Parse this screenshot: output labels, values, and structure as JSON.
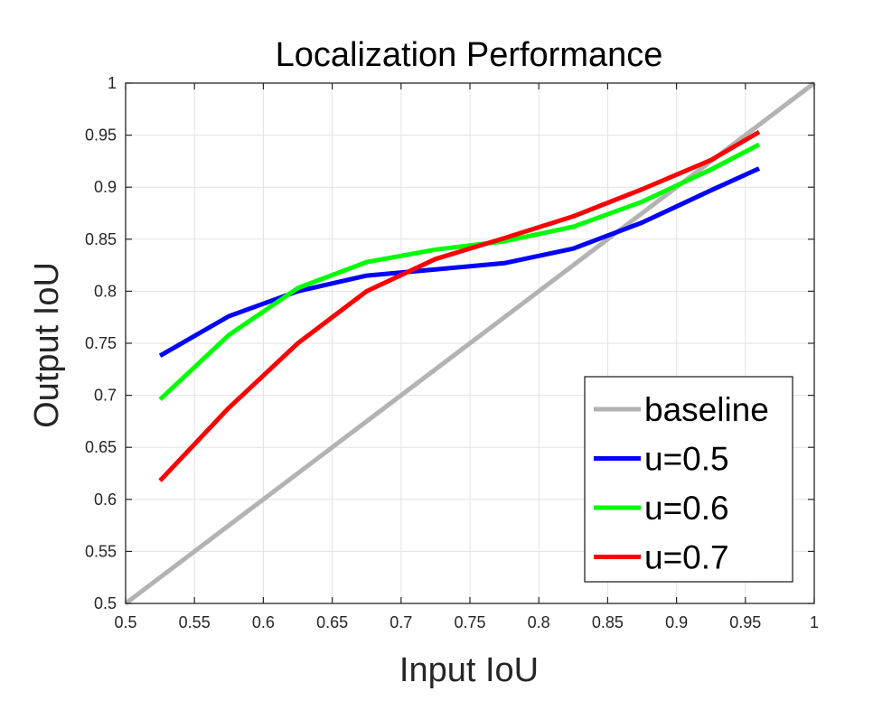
{
  "chart_data": {
    "type": "line",
    "title": "Localization Performance",
    "xlabel": "Input IoU",
    "ylabel": "Output IoU",
    "xlim": [
      0.5,
      1
    ],
    "ylim": [
      0.5,
      1
    ],
    "xticks": [
      0.5,
      0.55,
      0.6,
      0.65,
      0.7,
      0.75,
      0.8,
      0.85,
      0.9,
      0.95,
      1
    ],
    "yticks": [
      0.5,
      0.55,
      0.6,
      0.65,
      0.7,
      0.75,
      0.8,
      0.85,
      0.9,
      0.95,
      1
    ],
    "xtick_labels": [
      "0.5",
      "0.55",
      "0.6",
      "0.65",
      "0.7",
      "0.75",
      "0.8",
      "0.85",
      "0.9",
      "0.95",
      "1"
    ],
    "ytick_labels": [
      "0.5",
      "0.55",
      "0.6",
      "0.65",
      "0.7",
      "0.75",
      "0.8",
      "0.85",
      "0.9",
      "0.95",
      "1"
    ],
    "grid": true,
    "legend_position": "bottom-right",
    "series": [
      {
        "name": "baseline",
        "color": "#b3b3b3",
        "x": [
          0.5,
          1.0
        ],
        "y": [
          0.5,
          1.0
        ]
      },
      {
        "name": "u=0.5",
        "color": "#0000ff",
        "x": [
          0.525,
          0.575,
          0.625,
          0.675,
          0.725,
          0.775,
          0.825,
          0.875,
          0.925,
          0.96
        ],
        "y": [
          0.738,
          0.776,
          0.8,
          0.815,
          0.821,
          0.827,
          0.841,
          0.866,
          0.897,
          0.918
        ]
      },
      {
        "name": "u=0.6",
        "color": "#00ff00",
        "x": [
          0.525,
          0.575,
          0.625,
          0.675,
          0.725,
          0.775,
          0.825,
          0.875,
          0.925,
          0.96
        ],
        "y": [
          0.696,
          0.758,
          0.803,
          0.828,
          0.84,
          0.848,
          0.862,
          0.886,
          0.917,
          0.941
        ]
      },
      {
        "name": "u=0.7",
        "color": "#ff0000",
        "x": [
          0.525,
          0.575,
          0.625,
          0.675,
          0.725,
          0.775,
          0.825,
          0.875,
          0.925,
          0.96
        ],
        "y": [
          0.618,
          0.688,
          0.75,
          0.8,
          0.831,
          0.851,
          0.872,
          0.898,
          0.926,
          0.953
        ]
      }
    ]
  }
}
